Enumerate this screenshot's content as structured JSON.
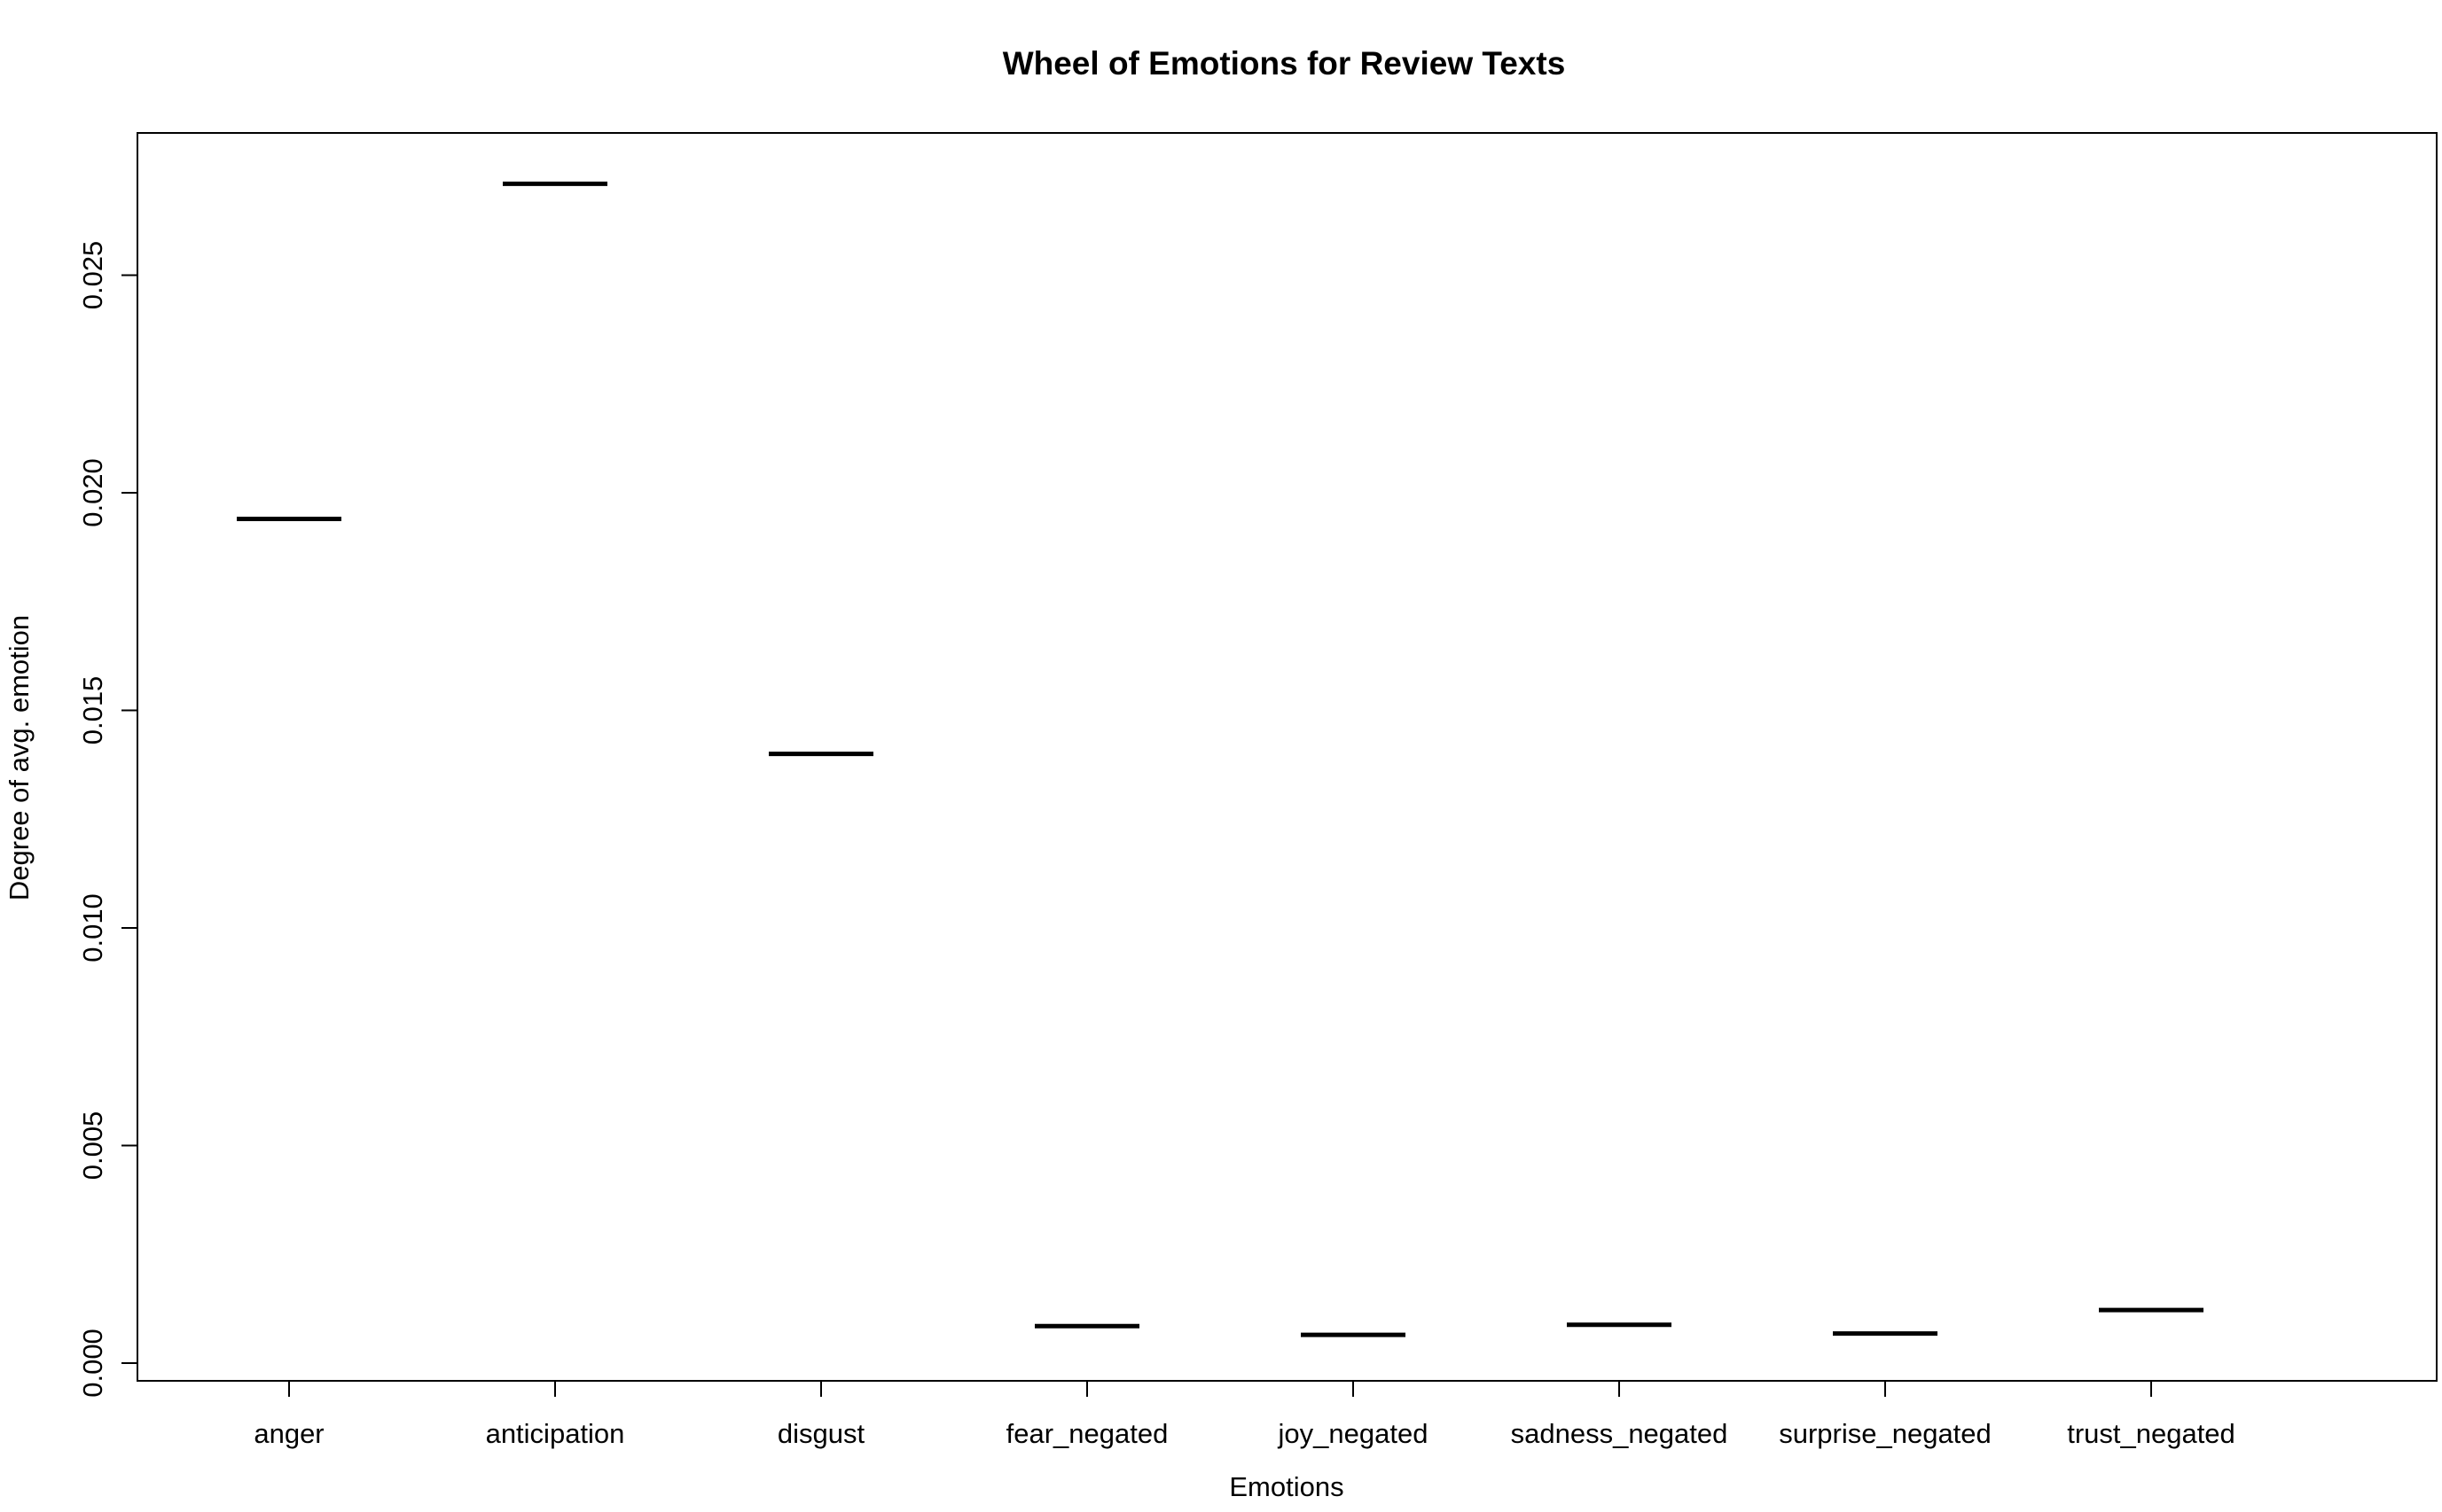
{
  "chart_data": {
    "type": "line",
    "title": "Wheel of Emotions for Review Texts",
    "xlabel": "Emotions",
    "ylabel": "Degree of avg. emotion",
    "categories": [
      "anger",
      "anticipation",
      "disgust",
      "fear_negated",
      "joy_negated",
      "sadness_negated",
      "surprise_negated",
      "trust_negated"
    ],
    "values": [
      0.0194,
      0.0271,
      0.014,
      0.00085,
      0.00065,
      0.00088,
      0.00068,
      0.00122
    ],
    "y_ticks": [
      "0.000",
      "0.005",
      "0.010",
      "0.015",
      "0.020",
      "0.025"
    ],
    "ylim": [
      0,
      0.0276
    ],
    "grid": false,
    "legend": "none"
  }
}
